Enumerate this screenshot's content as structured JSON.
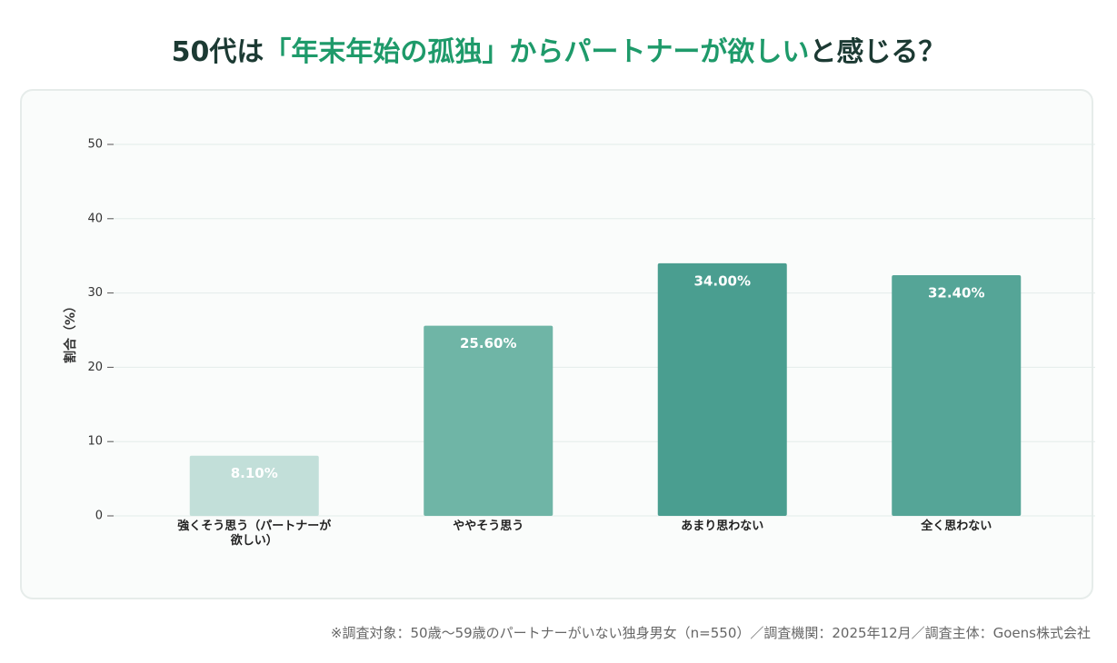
{
  "title_parts": [
    "50代は",
    "「年末年始の孤独」からパートナーが欲しい",
    "と感じる？"
  ],
  "chart_data": {
    "type": "bar",
    "y_label": "割合（%）",
    "categories": [
      "強くそう思う（パートナーが欲しい）",
      "ややそう思う",
      "あまり思わない",
      "全く思わない"
    ],
    "values": [
      8.1,
      25.6,
      34.0,
      32.4
    ],
    "value_labels": [
      "8.10%",
      "25.60%",
      "34.00%",
      "32.40%"
    ],
    "colors": [
      "#c2dfd9",
      "#6fb5a6",
      "#4a9e90",
      "#55a597"
    ],
    "ylim": [
      0,
      50
    ],
    "yticks": [
      0,
      10,
      20,
      30,
      40,
      50
    ],
    "grid": true
  },
  "footnote": "※調査対象：50歳〜59歳のパートナーがいない独身男女（n=550）／調査機関：2025年12月／調査主体：Goens株式会社"
}
